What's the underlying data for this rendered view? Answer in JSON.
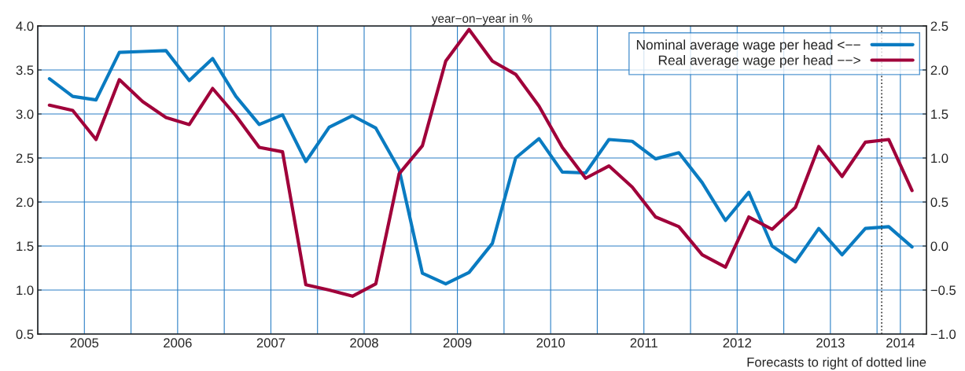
{
  "chart_data": {
    "type": "line",
    "title": "year−on−year in %",
    "x": [
      2005.125,
      2005.375,
      2005.625,
      2005.875,
      2006.125,
      2006.375,
      2006.625,
      2006.875,
      2007.125,
      2007.375,
      2007.625,
      2007.875,
      2008.125,
      2008.375,
      2008.625,
      2008.875,
      2009.125,
      2009.375,
      2009.625,
      2009.875,
      2010.125,
      2010.375,
      2010.625,
      2010.875,
      2011.125,
      2011.375,
      2011.625,
      2011.875,
      2012.125,
      2012.375,
      2012.625,
      2012.875,
      2013.125,
      2013.375,
      2013.625,
      2013.875,
      2014.125,
      2014.375
    ],
    "series": [
      {
        "name": "Nominal average wage per head <−−",
        "color": "#0a7bc1",
        "values": [
          3.4,
          3.2,
          3.16,
          3.7,
          3.71,
          3.72,
          3.38,
          3.63,
          3.2,
          2.88,
          2.99,
          2.46,
          2.85,
          2.98,
          2.84,
          2.37,
          1.19,
          1.07,
          1.2,
          1.53,
          2.5,
          2.72,
          2.34,
          2.33,
          2.71,
          2.69,
          2.49,
          2.56,
          2.22,
          1.79,
          2.11,
          1.5,
          1.32,
          1.7,
          1.4,
          1.7,
          1.72,
          1.49
        ]
      },
      {
        "name": "Real average wage per head −−>",
        "color": "#a0003a",
        "axis": "y2",
        "values": [
          1.6,
          1.54,
          1.21,
          1.89,
          1.64,
          1.46,
          1.38,
          1.79,
          1.48,
          1.12,
          1.07,
          -0.44,
          -0.5,
          -0.57,
          -0.43,
          0.82,
          1.14,
          2.1,
          2.46,
          2.1,
          1.95,
          1.59,
          1.12,
          0.77,
          0.91,
          0.67,
          0.33,
          0.22,
          -0.1,
          -0.24,
          0.33,
          0.19,
          0.44,
          1.13,
          0.79,
          1.18,
          1.21,
          0.63
        ]
      }
    ],
    "xlim": [
      2005,
      2014.53
    ],
    "xticks": [
      {
        "value": 2005,
        "label": null
      },
      {
        "value": 2005.5,
        "label": "2005"
      },
      {
        "value": 2006,
        "label": null
      },
      {
        "value": 2006.5,
        "label": "2006"
      },
      {
        "value": 2007,
        "label": null
      },
      {
        "value": 2007.5,
        "label": "2007"
      },
      {
        "value": 2008,
        "label": null
      },
      {
        "value": 2008.5,
        "label": "2008"
      },
      {
        "value": 2009,
        "label": null
      },
      {
        "value": 2009.5,
        "label": "2009"
      },
      {
        "value": 2010,
        "label": null
      },
      {
        "value": 2010.5,
        "label": "2010"
      },
      {
        "value": 2011,
        "label": null
      },
      {
        "value": 2011.5,
        "label": "2011"
      },
      {
        "value": 2012,
        "label": null
      },
      {
        "value": 2012.5,
        "label": "2012"
      },
      {
        "value": 2013,
        "label": null
      },
      {
        "value": 2013.5,
        "label": "2013"
      },
      {
        "value": 2014,
        "label": null
      },
      {
        "value": 2014.25,
        "label": "2014"
      }
    ],
    "ylim": [
      0.5,
      4.0
    ],
    "yticks": [
      {
        "value": 0.5,
        "label": "0.5"
      },
      {
        "value": 1.0,
        "label": "1.0"
      },
      {
        "value": 1.5,
        "label": "1.5"
      },
      {
        "value": 2.0,
        "label": "2.0"
      },
      {
        "value": 2.5,
        "label": "2.5"
      },
      {
        "value": 3.0,
        "label": "3.0"
      },
      {
        "value": 3.5,
        "label": "3.5"
      },
      {
        "value": 4.0,
        "label": "4.0"
      }
    ],
    "y2lim": [
      -1.0,
      2.5
    ],
    "y2ticks": [
      {
        "value": -1.0,
        "label": "−1.0"
      },
      {
        "value": -0.5,
        "label": "−0.5"
      },
      {
        "value": 0.0,
        "label": "0.0"
      },
      {
        "value": 0.5,
        "label": "0.5"
      },
      {
        "value": 1.0,
        "label": "1.0"
      },
      {
        "value": 1.5,
        "label": "1.5"
      },
      {
        "value": 2.0,
        "label": "2.0"
      },
      {
        "value": 2.5,
        "label": "2.5"
      }
    ],
    "ref_lines": [
      {
        "axis": "x",
        "value": 2014.05,
        "color": "#333333",
        "line_style": "dotted"
      }
    ],
    "annotations": [
      "Forecasts to right of dotted line"
    ],
    "grid": true,
    "legend": "top right",
    "line_style": "solid",
    "marker": "none"
  }
}
